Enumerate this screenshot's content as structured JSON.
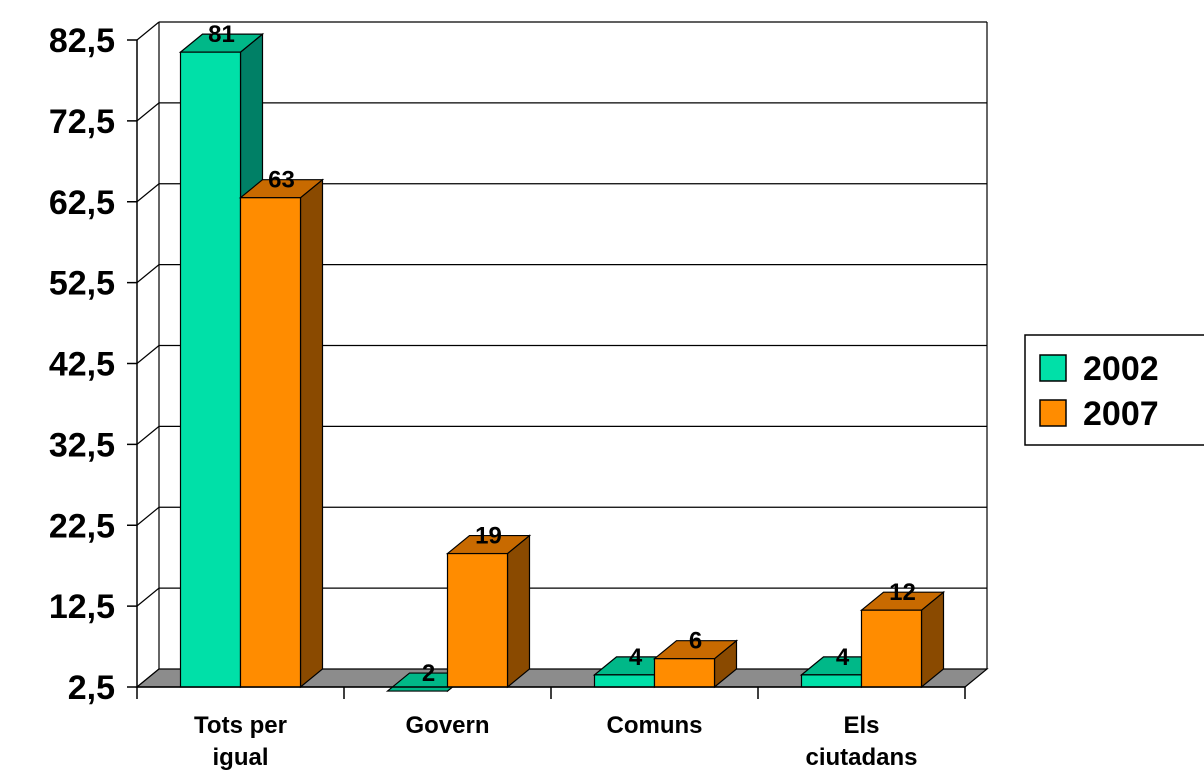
{
  "colors": {
    "series_2002_front": "#00e0a8",
    "series_2002_side": "#008066",
    "series_2002_top": "#00b888",
    "series_2007_front": "#ff8c00",
    "series_2007_side": "#8a4a00",
    "series_2007_top": "#c86a00",
    "floor": "#8c8c8c",
    "grid": "#000000"
  },
  "chart_data": {
    "type": "bar",
    "title": "",
    "xlabel": "",
    "ylabel": "",
    "ylim": [
      2.5,
      82.5
    ],
    "y_ticks": [
      "2,5",
      "12,5",
      "22,5",
      "32,5",
      "42,5",
      "52,5",
      "62,5",
      "72,5",
      "82,5"
    ],
    "y_tick_values": [
      2.5,
      12.5,
      22.5,
      32.5,
      42.5,
      52.5,
      62.5,
      72.5,
      82.5
    ],
    "grid": true,
    "legend_position": "right",
    "categories": [
      {
        "line1": "Tots per",
        "line2": "igual"
      },
      {
        "line1": "Govern",
        "line2": ""
      },
      {
        "line1": "Comuns",
        "line2": ""
      },
      {
        "line1": "Els",
        "line2": "ciutadans"
      }
    ],
    "series": [
      {
        "name": "2002",
        "values": [
          81,
          2,
          4,
          4
        ],
        "labels": [
          "81",
          "2",
          "4",
          "4"
        ]
      },
      {
        "name": "2007",
        "values": [
          63,
          19,
          6,
          12
        ],
        "labels": [
          "63",
          "19",
          "6",
          "12"
        ]
      }
    ]
  }
}
